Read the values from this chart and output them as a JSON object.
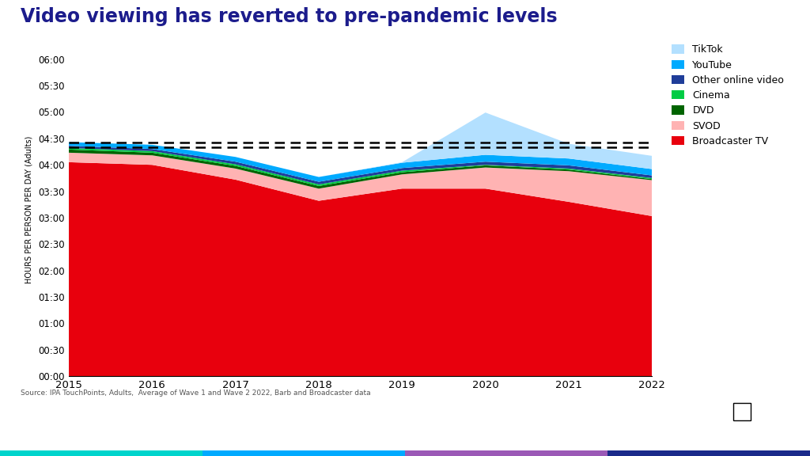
{
  "title": "Video viewing has reverted to pre-pandemic levels",
  "title_color": "#1c1c8c",
  "ylabel": "HOURS PER PERSON PER DAY (Adults)",
  "source": "Source: IPA TouchPoints, Adults,  Average of Wave 1 and Wave 2 2022, Barb and Broadcaster data",
  "years": [
    2015,
    2016,
    2017,
    2018,
    2019,
    2020,
    2021,
    2022
  ],
  "broadcaster_tv": [
    4.05,
    4.0,
    3.72,
    3.32,
    3.55,
    3.55,
    3.3,
    3.03
  ],
  "svod": [
    0.18,
    0.18,
    0.21,
    0.23,
    0.27,
    0.4,
    0.58,
    0.68
  ],
  "dvd": [
    0.06,
    0.05,
    0.05,
    0.05,
    0.04,
    0.04,
    0.03,
    0.02
  ],
  "cinema": [
    0.03,
    0.03,
    0.03,
    0.03,
    0.03,
    0.01,
    0.02,
    0.02
  ],
  "other_online": [
    0.04,
    0.04,
    0.05,
    0.05,
    0.05,
    0.06,
    0.06,
    0.05
  ],
  "youtube": [
    0.07,
    0.08,
    0.09,
    0.09,
    0.1,
    0.13,
    0.13,
    0.12
  ],
  "tiktok": [
    0.0,
    0.0,
    0.0,
    0.0,
    0.01,
    0.8,
    0.28,
    0.25
  ],
  "dashed_line_1": 4.33,
  "dashed_line_2": 4.43,
  "colors": {
    "broadcaster_tv": "#e8000d",
    "svod": "#ffb3b3",
    "dvd": "#006400",
    "cinema": "#00cc44",
    "other_online": "#1f3d99",
    "youtube": "#00aaff",
    "tiktok": "#b3e0ff"
  },
  "background_color": "#ffffff",
  "yticks": [
    0,
    0.5,
    1.0,
    1.5,
    2.0,
    2.5,
    3.0,
    3.5,
    4.0,
    4.5,
    5.0,
    5.5,
    6.0
  ],
  "ytick_labels": [
    "00:00",
    "00:30",
    "01:00",
    "01:30",
    "02:00",
    "02:30",
    "03:00",
    "03:30",
    "04:00",
    "04:30",
    "05:00",
    "05:30",
    "06:00"
  ],
  "ylim": [
    0,
    6.3
  ],
  "thinkbox_bg": "#1a2a4a",
  "colorbar": [
    "#00d4cc",
    "#00aaff",
    "#9b59b6",
    "#1a2a8a"
  ]
}
